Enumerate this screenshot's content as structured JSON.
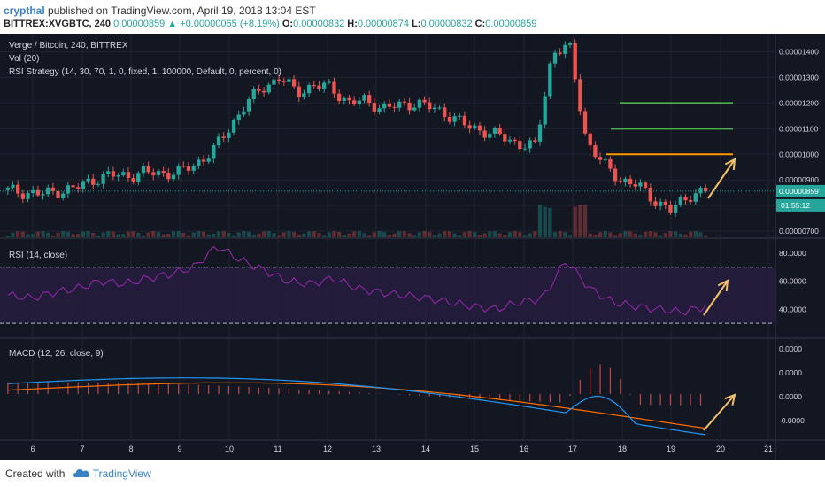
{
  "header": {
    "user": "crypthal",
    "published_text": "published on TradingView.com, April 19, 2018 13:04 EST",
    "symbol": "BITTREX:XVGBTC, 240",
    "last": "0.00000859",
    "change": "+0.00000065 (+8.19%)",
    "open_label": "O:",
    "open": "0.00000832",
    "high_label": "H:",
    "high": "0.00000874",
    "low_label": "L:",
    "low": "0.00000832",
    "close_label": "C:",
    "close": "0.00000859"
  },
  "legend": {
    "title": "Verge / Bitcoin, 240, BITTREX",
    "vol": "Vol (20)",
    "strategy": "RSI Strategy (14, 30, 70, 1, 0, fixed, 1, 100000, Default, 0, percent, 0)",
    "rsi": "RSI (14, close)",
    "macd": "MACD (12, 26, close, 9)"
  },
  "price_axis": [
    "0.00001400",
    "0.00001300",
    "0.00001200",
    "0.00001100",
    "0.00001000",
    "0.00000900",
    "0.00000800",
    "0.00000700"
  ],
  "price_badge": "0.00000859",
  "countdown_badge": "01:55:12",
  "rsi_axis": [
    "80.0000",
    "60.0000",
    "40.0000"
  ],
  "macd_axis": [
    "0.0000",
    "0.0000",
    "0.0000",
    "-0.0000"
  ],
  "time_axis": [
    "6",
    "7",
    "8",
    "9",
    "10",
    "11",
    "12",
    "13",
    "14",
    "15",
    "16",
    "17",
    "18",
    "19",
    "20",
    "21"
  ],
  "footer": {
    "created": "Created with",
    "brand": "TradingView"
  },
  "colors": {
    "up": "#26a69a",
    "down": "#ef5350",
    "rsi": "#9c27b0",
    "macd": "#2196f3",
    "signal": "#ff6d00",
    "annotation": "#f5c06a",
    "green_line": "#4caf50",
    "orange_line": "#ff9800"
  },
  "chart_data": {
    "type": "candlestick",
    "x_labels": [
      "6",
      "7",
      "8",
      "9",
      "10",
      "11",
      "12",
      "13",
      "14",
      "15",
      "16",
      "17",
      "18",
      "19",
      "20",
      "21"
    ],
    "price_close": [
      860,
      850,
      845,
      855,
      870,
      900,
      920,
      915,
      930,
      925,
      930,
      960,
      1010,
      1100,
      1200,
      1260,
      1300,
      1240,
      1270,
      1260,
      1200,
      1210,
      1180,
      1190,
      1200,
      1180,
      1150,
      1110,
      1090,
      1070,
      1040,
      1030,
      1400,
      1420,
      1050,
      960,
      900,
      880,
      820,
      780,
      840,
      859
    ],
    "horizontal_lines": [
      1200,
      1100,
      1000
    ],
    "rsi_values": [
      50,
      48,
      52,
      55,
      60,
      58,
      62,
      65,
      70,
      85,
      75,
      68,
      60,
      58,
      62,
      55,
      52,
      50,
      48,
      45,
      42,
      40,
      45,
      48,
      75,
      55,
      45,
      42,
      40,
      38,
      42
    ],
    "rsi_levels": [
      70,
      30
    ]
  }
}
